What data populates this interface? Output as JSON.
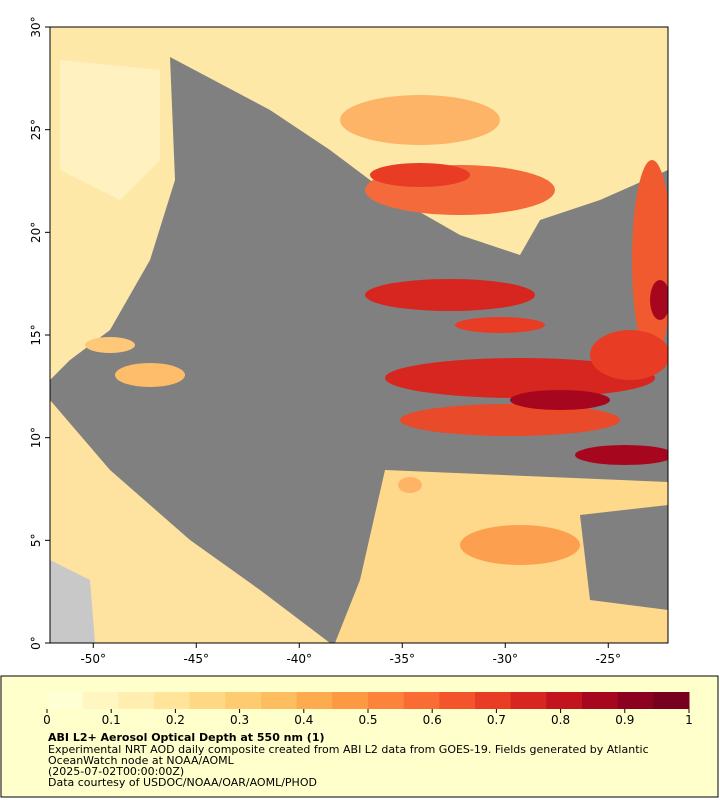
{
  "chart_data": {
    "type": "map",
    "xlim": [
      -52.1,
      -22.1
    ],
    "ylim": [
      0,
      30
    ],
    "xticks": [
      {
        "value": -50,
        "label": "-50°"
      },
      {
        "value": -45,
        "label": "-45°"
      },
      {
        "value": -40,
        "label": "-40°"
      },
      {
        "value": -35,
        "label": "-35°"
      },
      {
        "value": -30,
        "label": "-30°"
      },
      {
        "value": -25,
        "label": "-25°"
      }
    ],
    "yticks": [
      {
        "value": 0,
        "label": "0°"
      },
      {
        "value": 5,
        "label": "5°"
      },
      {
        "value": 10,
        "label": "10°"
      },
      {
        "value": 15,
        "label": "15°"
      },
      {
        "value": 20,
        "label": "20°"
      },
      {
        "value": 25,
        "label": "25°"
      },
      {
        "value": 30,
        "label": "30°"
      }
    ],
    "colorbar": {
      "lim": [
        0,
        1
      ],
      "ticks": [
        0,
        0.1,
        0.2,
        0.3,
        0.4,
        0.5,
        0.6,
        0.7,
        0.8,
        0.9,
        1
      ],
      "colors": [
        "#ffffd4",
        "#fff6c2",
        "#ffeeb0",
        "#ffe49a",
        "#fed884",
        "#fecb70",
        "#febd5e",
        "#fdab4e",
        "#fd9843",
        "#fc833b",
        "#f96c33",
        "#f3542b",
        "#e83c24",
        "#d7261f",
        "#c1141f",
        "#a6071f",
        "#8c0020",
        "#78001f"
      ]
    },
    "title": "ABI L2+ Aerosol Optical Depth at 550 nm (1)",
    "description_lines": [
      "Experimental NRT AOD daily composite created from ABI L2 data from GOES-19. Fields generated by Atlantic",
      "OceanWatch node at NOAA/AOML",
      "(2025-07-02T00:00:00Z)",
      "Data courtesy of USDOC/NOAA/OAR/AOML/PHOD"
    ]
  }
}
